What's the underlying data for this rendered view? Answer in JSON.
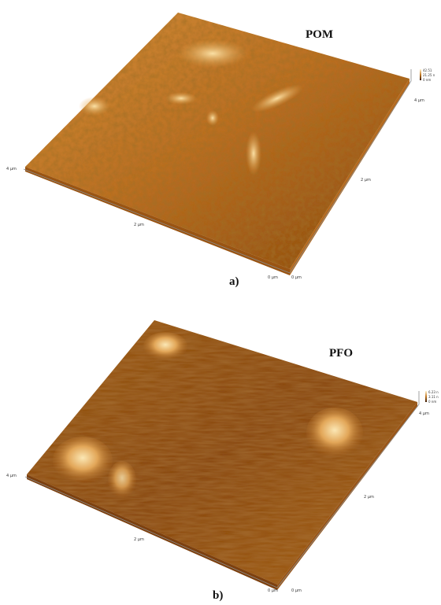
{
  "panel_a": {
    "sample_label": "POM",
    "caption": "a)",
    "ticks": {
      "left_x": "4 µm",
      "mid_x": "2 µm",
      "front": "0 µm",
      "right_y": "2 µm",
      "right_end": "0 µm",
      "back": "4 µm"
    },
    "height_scale": {
      "max": "42.51",
      "mid": "21.25 n",
      "min": "0 nm"
    }
  },
  "panel_b": {
    "sample_label": "PFO",
    "caption": "b)",
    "ticks": {
      "left_x": "4 µm",
      "mid_x": "2 µm",
      "front": "0 µm",
      "right_y": "2 µm",
      "right_end": "0 µm",
      "back": "4 µm"
    },
    "height_scale": {
      "max": "6.23 n",
      "mid": "3.11 n",
      "min": "0 nm"
    }
  },
  "colors": {
    "surface_light": "#f7d28a",
    "surface_mid": "#c47a24",
    "surface_dark": "#7a3e0c",
    "axis": "#8a8a8a"
  }
}
